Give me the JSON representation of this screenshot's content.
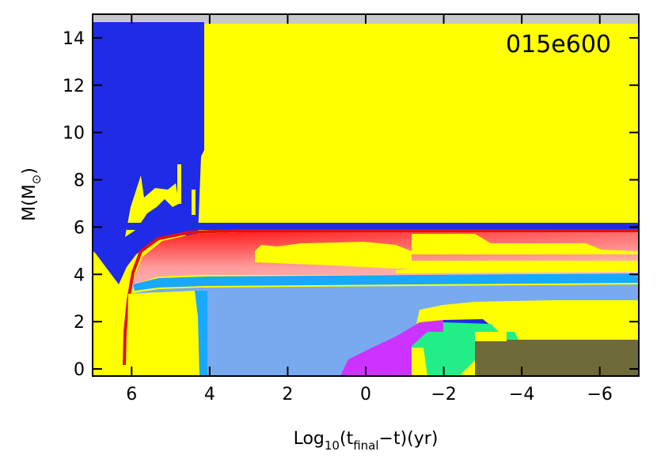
{
  "chart_data": {
    "type": "area",
    "model_label": "015e600",
    "xlabel": {
      "prefix": "Log",
      "sub1": "10",
      "mid": "(t",
      "sub2": "final",
      "suffix": "−t)(yr)"
    },
    "ylabel": {
      "prefix": "M(M",
      "sub": "⊙",
      "suffix": ")"
    },
    "xlim": [
      7.0,
      -7.0
    ],
    "ylim": [
      -0.3,
      15.0
    ],
    "xticks": [
      6,
      4,
      2,
      0,
      -2,
      -4,
      -6
    ],
    "xtick_labels": [
      "6",
      "4",
      "2",
      "0",
      "−2",
      "−4",
      "−6"
    ],
    "yticks": [
      0,
      2,
      4,
      6,
      8,
      10,
      12,
      14
    ],
    "ytick_labels": [
      "0",
      "2",
      "4",
      "6",
      "8",
      "10",
      "12",
      "14"
    ],
    "total_mass_line": 14.6,
    "colors": {
      "background": "#ffff00",
      "above_star": "#c8c8c8",
      "convective_envelope": "#1f2be6",
      "hydrogen_shell": "#e01010",
      "cyan_band": "#19a8ff",
      "core_blue": "#79aaf0",
      "magenta": "#cc33ff",
      "green": "#22ee88",
      "olive": "#6e6a3a"
    }
  }
}
